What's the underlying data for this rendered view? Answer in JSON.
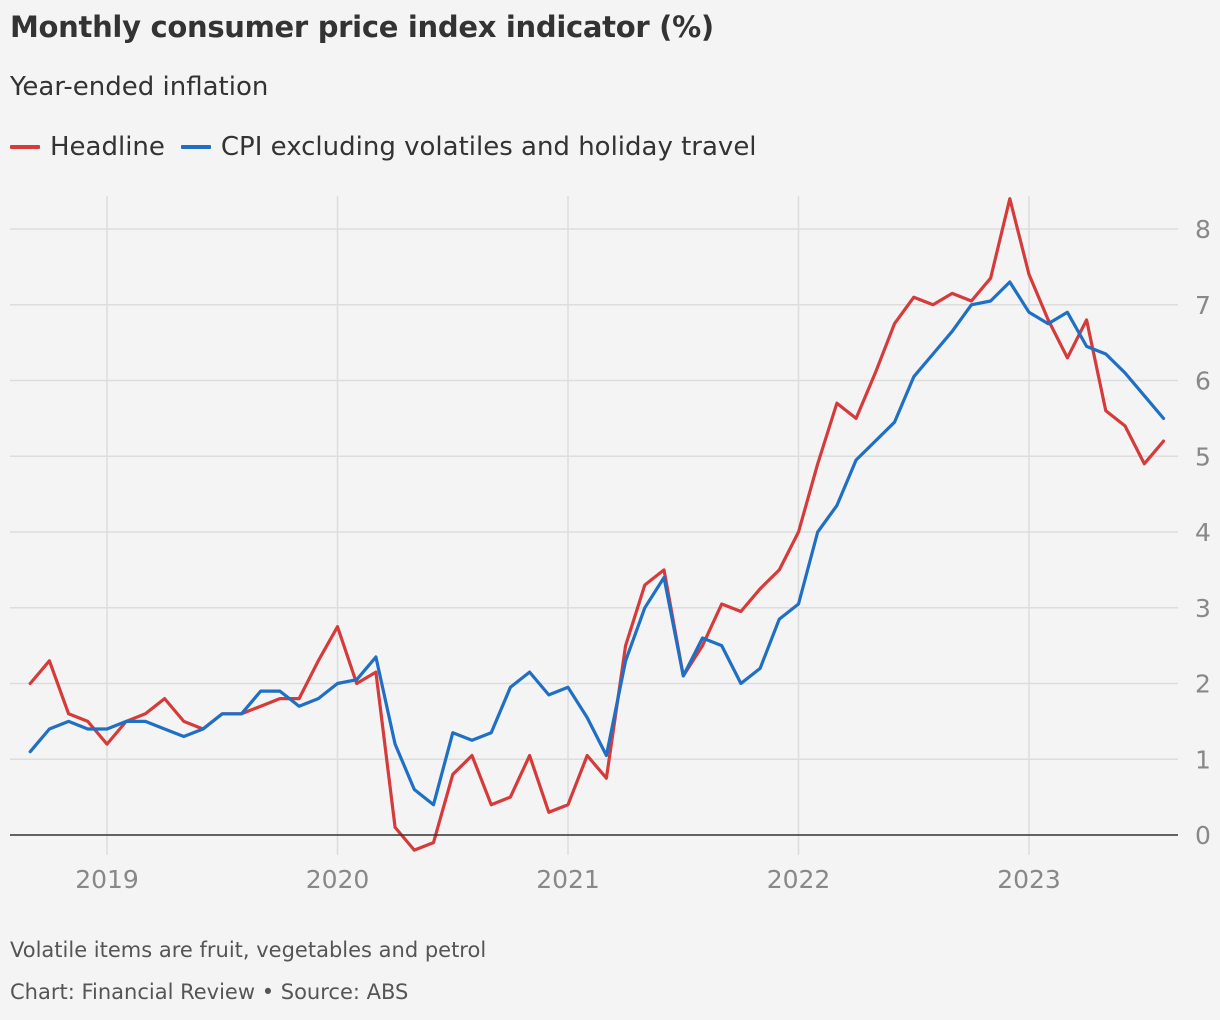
{
  "chart_data": {
    "type": "line",
    "title": "Monthly consumer price index indicator (%)",
    "subtitle": "Year-ended inflation",
    "x_year_ticks": [
      "2019",
      "2020",
      "2021",
      "2022",
      "2023"
    ],
    "y_ticks": [
      0,
      1,
      2,
      3,
      4,
      5,
      6,
      7,
      8
    ],
    "ylim": [
      -0.2,
      8.5
    ],
    "x_start": "2018-09",
    "x_end": "2023-08",
    "grid": true,
    "legend_placement": "top-left",
    "series": [
      {
        "name": "Headline",
        "color": "#d63b3b",
        "x": [
          "2018-09",
          "2018-10",
          "2018-11",
          "2018-12",
          "2019-01",
          "2019-02",
          "2019-03",
          "2019-04",
          "2019-05",
          "2019-06",
          "2019-07",
          "2019-08",
          "2019-09",
          "2019-10",
          "2019-11",
          "2019-12",
          "2020-01",
          "2020-02",
          "2020-03",
          "2020-04",
          "2020-05",
          "2020-06",
          "2020-07",
          "2020-08",
          "2020-09",
          "2020-10",
          "2020-11",
          "2020-12",
          "2021-01",
          "2021-02",
          "2021-03",
          "2021-04",
          "2021-05",
          "2021-06",
          "2021-07",
          "2021-08",
          "2021-09",
          "2021-10",
          "2021-11",
          "2021-12",
          "2022-01",
          "2022-02",
          "2022-03",
          "2022-04",
          "2022-05",
          "2022-06",
          "2022-07",
          "2022-08",
          "2022-09",
          "2022-10",
          "2022-11",
          "2022-12",
          "2023-01",
          "2023-02",
          "2023-03",
          "2023-04",
          "2023-05",
          "2023-06",
          "2023-07",
          "2023-08"
        ],
        "values": [
          2.0,
          2.3,
          1.6,
          1.5,
          1.2,
          1.5,
          1.6,
          1.8,
          1.5,
          1.4,
          1.6,
          1.6,
          1.7,
          1.8,
          1.8,
          2.3,
          2.75,
          2.0,
          2.15,
          0.1,
          -0.2,
          -0.1,
          0.8,
          1.05,
          0.4,
          0.5,
          1.05,
          0.3,
          0.4,
          1.05,
          0.75,
          2.5,
          3.3,
          3.5,
          2.1,
          2.5,
          3.05,
          2.95,
          3.25,
          3.5,
          4.0,
          4.9,
          5.7,
          5.5,
          6.1,
          6.75,
          7.1,
          7.0,
          7.15,
          7.05,
          7.35,
          8.4,
          7.4,
          6.8,
          6.3,
          6.8,
          5.6,
          5.4,
          4.9,
          5.2
        ]
      },
      {
        "name": "CPI excluding volatiles and holiday travel",
        "color": "#1f6fc5",
        "x": [
          "2018-09",
          "2018-10",
          "2018-11",
          "2018-12",
          "2019-01",
          "2019-02",
          "2019-03",
          "2019-04",
          "2019-05",
          "2019-06",
          "2019-07",
          "2019-08",
          "2019-09",
          "2019-10",
          "2019-11",
          "2019-12",
          "2020-01",
          "2020-02",
          "2020-03",
          "2020-04",
          "2020-05",
          "2020-06",
          "2020-07",
          "2020-08",
          "2020-09",
          "2020-10",
          "2020-11",
          "2020-12",
          "2021-01",
          "2021-02",
          "2021-03",
          "2021-04",
          "2021-05",
          "2021-06",
          "2021-07",
          "2021-08",
          "2021-09",
          "2021-10",
          "2021-11",
          "2021-12",
          "2022-01",
          "2022-02",
          "2022-03",
          "2022-04",
          "2022-05",
          "2022-06",
          "2022-07",
          "2022-08",
          "2022-09",
          "2022-10",
          "2022-11",
          "2022-12",
          "2023-01",
          "2023-02",
          "2023-03",
          "2023-04",
          "2023-05",
          "2023-06",
          "2023-07",
          "2023-08"
        ],
        "values": [
          1.1,
          1.4,
          1.5,
          1.4,
          1.4,
          1.5,
          1.5,
          1.4,
          1.3,
          1.4,
          1.6,
          1.6,
          1.9,
          1.9,
          1.7,
          1.8,
          2.0,
          2.05,
          2.35,
          1.2,
          0.6,
          0.4,
          1.35,
          1.25,
          1.35,
          1.95,
          2.15,
          1.85,
          1.95,
          1.55,
          1.05,
          2.3,
          3.0,
          3.4,
          2.1,
          2.6,
          2.5,
          2.0,
          2.2,
          2.85,
          3.05,
          4.0,
          4.35,
          4.95,
          5.2,
          5.45,
          6.05,
          6.35,
          6.65,
          7.0,
          7.05,
          7.3,
          6.9,
          6.75,
          6.9,
          6.45,
          6.35,
          6.1,
          5.8,
          5.5
        ]
      }
    ]
  },
  "legend": [
    {
      "label": "Headline",
      "color": "#d63b3b"
    },
    {
      "label": "CPI excluding volatiles and holiday travel",
      "color": "#1f6fc5"
    }
  ],
  "footnote": "Volatile items are fruit, vegetables and petrol",
  "credit": "Chart: Financial Review • Source: ABS"
}
